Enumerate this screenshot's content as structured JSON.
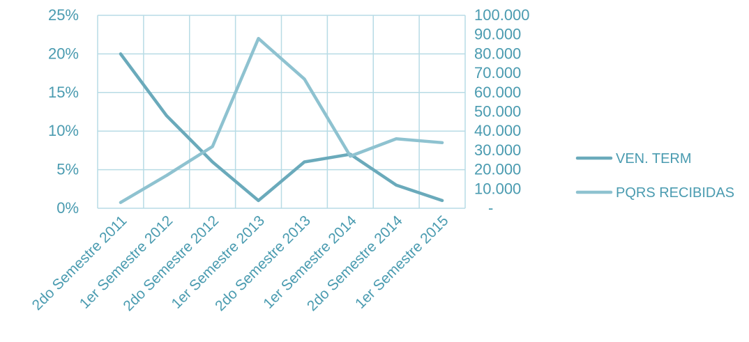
{
  "chart_data": {
    "type": "line",
    "categories": [
      "2do Semestre 2011",
      "1er Semestre 2012",
      "2do Semestre 2012",
      "1er Semestre 2013",
      "2do Semestre 2013",
      "1er Semestre 2014",
      "2do Semestre 2014",
      "1er Semestre 2015"
    ],
    "series": [
      {
        "name": "VEN. TERM",
        "axis": "left",
        "color": "#6aaabb",
        "values": [
          0.2,
          0.12,
          0.06,
          0.01,
          0.06,
          0.07,
          0.03,
          0.01
        ]
      },
      {
        "name": "PQRS RECIBIDAS",
        "axis": "right",
        "color": "#8ec2d0",
        "values": [
          3000,
          17000,
          32000,
          88000,
          67000,
          27000,
          36000,
          34000
        ]
      }
    ],
    "y_left": {
      "ylim": [
        0,
        0.25
      ],
      "ticks": [
        0,
        0.05,
        0.1,
        0.15,
        0.2,
        0.25
      ],
      "tick_labels": [
        "0%",
        "5%",
        "10%",
        "15%",
        "20%",
        "25%"
      ]
    },
    "y_right": {
      "ylim": [
        0,
        100000
      ],
      "ticks": [
        0,
        10000,
        20000,
        30000,
        40000,
        50000,
        60000,
        70000,
        80000,
        90000,
        100000
      ],
      "tick_labels": [
        "-",
        "10.000",
        "20.000",
        "30.000",
        "40.000",
        "50.000",
        "60.000",
        "70.000",
        "80.000",
        "90.000",
        "100.000"
      ]
    },
    "grid": true,
    "legend": "right",
    "title": "",
    "xlabel": "",
    "ylabel": "",
    "colors": {
      "text": "#4a9bb0",
      "grid": "#b7dbe5"
    }
  }
}
